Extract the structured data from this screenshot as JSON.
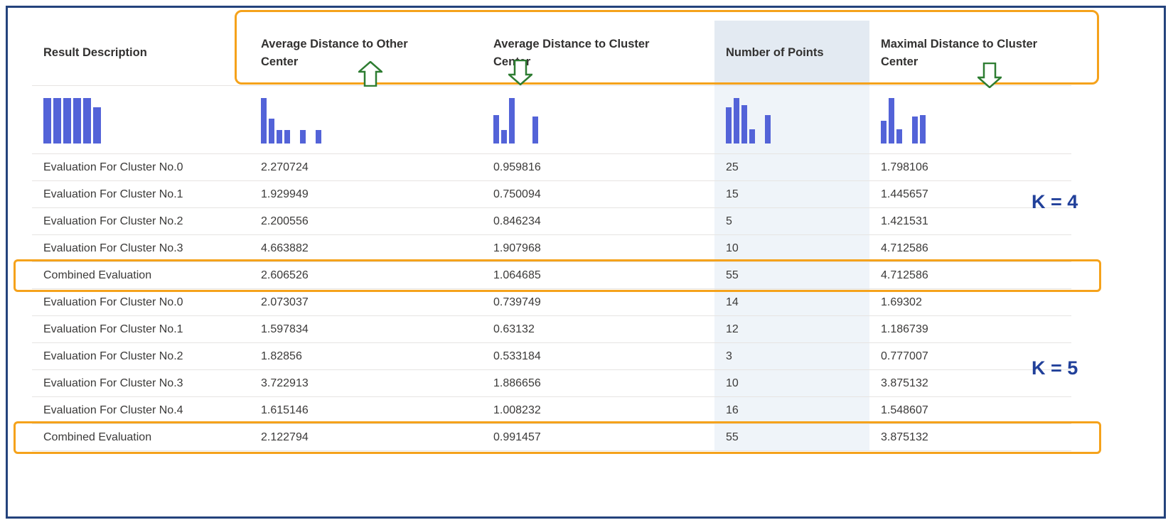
{
  "colors": {
    "frame-blue": "#24437C",
    "accent-orange": "#F5A21B",
    "arrow-green": "#2E7D32",
    "hist-blue": "#5363D8",
    "np-header-bg": "#E3EAF2",
    "np-col-bg": "#EFF4F9",
    "k-label-blue": "#21409A",
    "text": "#3B3A39",
    "header-text": "#323130",
    "row-line": "#E6E4E2"
  },
  "table": {
    "columns": [
      {
        "line1": "Result Description",
        "line2": ""
      },
      {
        "line1": "Average Distance to Other",
        "line2": "Center"
      },
      {
        "line1": "Average Distance to Cluster",
        "line2": "Center"
      },
      {
        "line1": "Number of Points",
        "line2": ""
      },
      {
        "line1": "Maximal Distance to Cluster",
        "line2": "Center"
      }
    ],
    "rows": [
      {
        "cells": [
          "Evaluation For Cluster No.0",
          "2.270724",
          "0.959816",
          "25",
          "1.798106"
        ]
      },
      {
        "cells": [
          "Evaluation For Cluster No.1",
          "1.929949",
          "0.750094",
          "15",
          "1.445657"
        ]
      },
      {
        "cells": [
          "Evaluation For Cluster No.2",
          "2.200556",
          "0.846234",
          "5",
          "1.421531"
        ]
      },
      {
        "cells": [
          "Evaluation For Cluster No.3",
          "4.663882",
          "1.907968",
          "10",
          "4.712586"
        ]
      },
      {
        "cells": [
          "Combined Evaluation",
          "2.606526",
          "1.064685",
          "55",
          "4.712586"
        ]
      },
      {
        "cells": [
          "Evaluation For Cluster No.0",
          "2.073037",
          "0.739749",
          "14",
          "1.69302"
        ]
      },
      {
        "cells": [
          "Evaluation For Cluster No.1",
          "1.597834",
          "0.63132",
          "12",
          "1.186739"
        ]
      },
      {
        "cells": [
          "Evaluation For Cluster No.2",
          "1.82856",
          "0.533184",
          "3",
          "0.777007"
        ]
      },
      {
        "cells": [
          "Evaluation For Cluster No.3",
          "3.722913",
          "1.886656",
          "10",
          "3.875132"
        ]
      },
      {
        "cells": [
          "Evaluation For Cluster No.4",
          "1.615146",
          "1.008232",
          "16",
          "1.548607"
        ]
      },
      {
        "cells": [
          "Combined Evaluation",
          "2.122794",
          "0.991457",
          "55",
          "3.875132"
        ]
      }
    ]
  },
  "histograms": {
    "desc": [
      1,
      1,
      1,
      1,
      1,
      0.8
    ],
    "avg_other": [
      1,
      0.55,
      0.3,
      0.3,
      0,
      0.3,
      0,
      0.3
    ],
    "avg_cluster": [
      0.62,
      0.3,
      1,
      0,
      0,
      0.6
    ],
    "num_points": [
      0.8,
      1,
      0.85,
      0.32,
      0,
      0.62
    ],
    "max_cluster": [
      0.5,
      1,
      0.32,
      0,
      0.6,
      0.62
    ]
  },
  "annotations": {
    "k4_label": "K = 4",
    "k5_label": "K = 5"
  }
}
